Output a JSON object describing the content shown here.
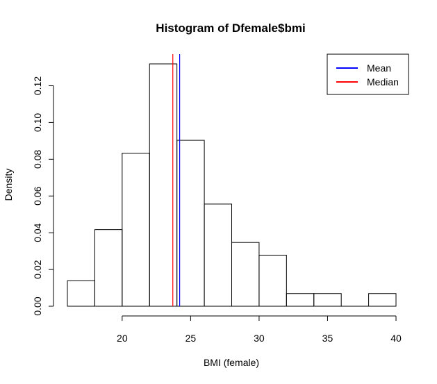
{
  "chart_data": {
    "type": "bar",
    "title": "Histogram of Dfemale$bmi",
    "xlabel": "BMI (female)",
    "ylabel": "Density",
    "bins": [
      {
        "start": 16,
        "end": 18,
        "density": 0.0139
      },
      {
        "start": 18,
        "end": 20,
        "density": 0.0417
      },
      {
        "start": 20,
        "end": 22,
        "density": 0.0833
      },
      {
        "start": 22,
        "end": 24,
        "density": 0.1319
      },
      {
        "start": 24,
        "end": 26,
        "density": 0.0903
      },
      {
        "start": 26,
        "end": 28,
        "density": 0.0556
      },
      {
        "start": 28,
        "end": 30,
        "density": 0.0347
      },
      {
        "start": 30,
        "end": 32,
        "density": 0.0278
      },
      {
        "start": 32,
        "end": 34,
        "density": 0.0069
      },
      {
        "start": 34,
        "end": 36,
        "density": 0.0069
      },
      {
        "start": 36,
        "end": 38,
        "density": 0.0
      },
      {
        "start": 38,
        "end": 40,
        "density": 0.0069
      }
    ],
    "x_ticks": [
      20,
      25,
      30,
      35,
      40
    ],
    "x_tick_labels": [
      "20",
      "25",
      "30",
      "35",
      "40"
    ],
    "y_ticks": [
      0,
      0.02,
      0.04,
      0.06,
      0.08,
      0.1,
      0.12
    ],
    "y_tick_labels": [
      "0.00",
      "0.02",
      "0.04",
      "0.06",
      "0.08",
      "0.10",
      "0.12"
    ],
    "xlim": [
      16,
      40
    ],
    "ylim": [
      0,
      0.1319
    ],
    "grid": false,
    "vlines": [
      {
        "name": "Mean",
        "x": 24.2,
        "color": "#0000ff"
      },
      {
        "name": "Median",
        "x": 23.7,
        "color": "#ff0000"
      }
    ],
    "legend": {
      "position": "top-right",
      "entries": [
        {
          "label": "Mean",
          "color": "#0000ff"
        },
        {
          "label": "Median",
          "color": "#ff0000"
        }
      ]
    }
  }
}
